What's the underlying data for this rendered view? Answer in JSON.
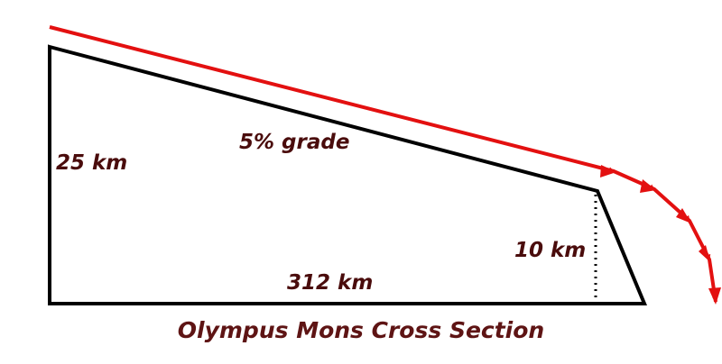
{
  "labels": {
    "height": "25 km",
    "grade": "5% grade",
    "edge_height": "10 km",
    "base": "312 km"
  },
  "title": "Olympus Mons Cross Section"
}
